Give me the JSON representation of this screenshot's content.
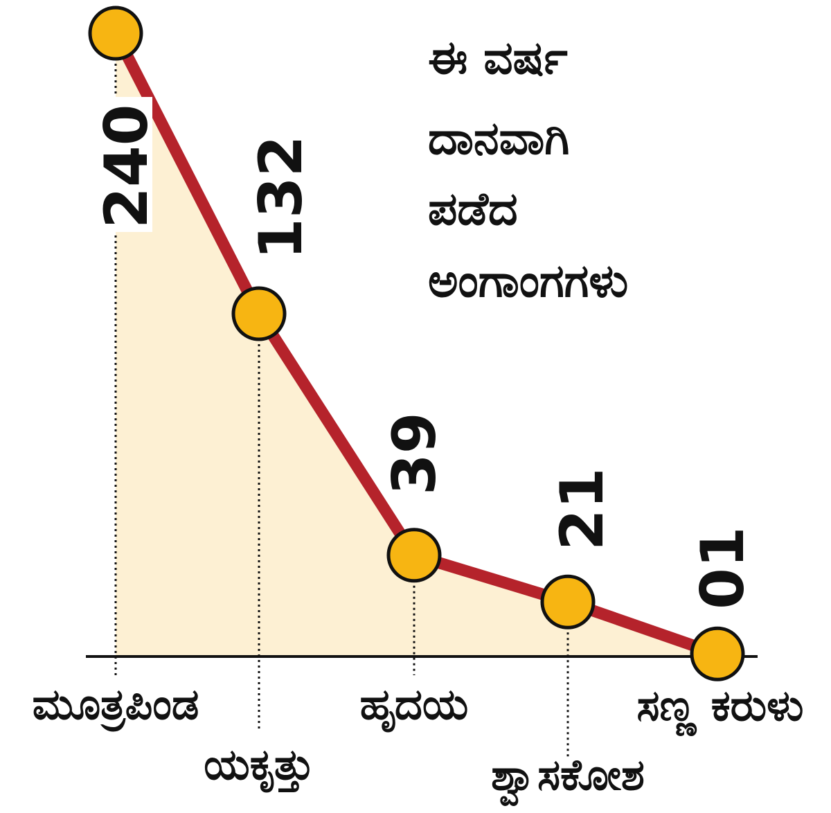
{
  "chart_data": {
    "type": "line",
    "title": [
      "ಈ ವರ್ಷ",
      "ದಾನವಾಗಿ",
      "ಪಡೆದ",
      "ಅಂಗಾಂಗಗಳು"
    ],
    "categories": [
      "ಮೂತ್ರಪಿಂಡ",
      "ಯಕೃತ್ತು",
      "ಹೃದಯ",
      "ಶ್ವಾಸಕೋಶ",
      "ಸಣ್ಣ ಕರುಳು"
    ],
    "values": [
      240,
      132,
      39,
      21,
      1
    ],
    "value_labels": [
      "240",
      "132",
      "39",
      "21",
      "01"
    ],
    "xlabel": "",
    "ylabel": "",
    "ylim": [
      0,
      240
    ],
    "grid": false,
    "legend": "none",
    "area_fill": true
  },
  "colors": {
    "line": "#b5232b",
    "marker_fill": "#f7b512",
    "marker_stroke": "#111111",
    "area": "#fdf0d3",
    "axis": "#111111",
    "text": "#111111"
  }
}
